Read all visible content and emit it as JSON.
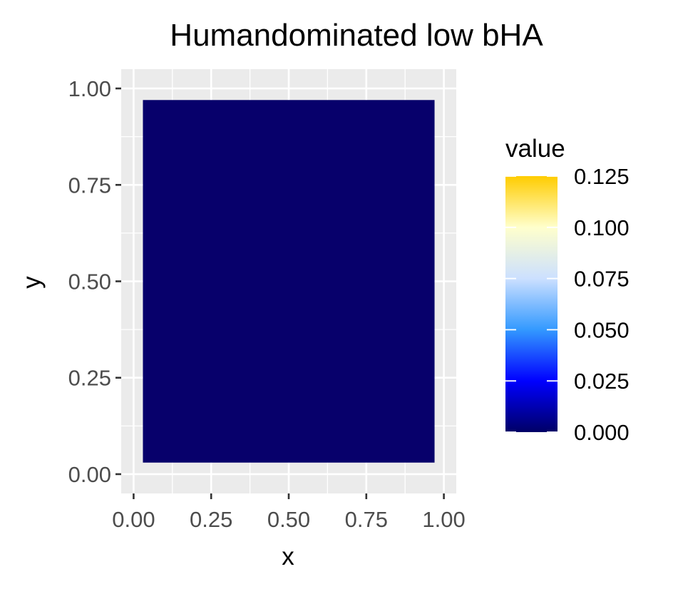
{
  "chart_data": {
    "type": "heatmap",
    "title": "Humandominated low bHA",
    "xlabel": "x",
    "ylabel": "y",
    "xlim": [
      -0.04,
      1.04
    ],
    "ylim": [
      -0.05,
      1.05
    ],
    "x_ticks": [
      0.0,
      0.25,
      0.5,
      0.75,
      1.0
    ],
    "y_ticks": [
      0.0,
      0.25,
      0.5,
      0.75,
      1.0
    ],
    "x_tick_labels": [
      "0.00",
      "0.25",
      "0.50",
      "0.75",
      "1.00"
    ],
    "y_tick_labels": [
      "0.00",
      "0.25",
      "0.50",
      "0.75",
      "1.00"
    ],
    "grid": true,
    "tile_extent": {
      "x": [
        0.03,
        0.97
      ],
      "y": [
        0.03,
        0.97
      ]
    },
    "value_estimate": 0.0,
    "fill_color": "#07006b",
    "legend": {
      "title": "value",
      "placement": "right",
      "range": [
        0.0,
        0.125
      ],
      "breaks": [
        0.0,
        0.025,
        0.05,
        0.075,
        0.1,
        0.125
      ],
      "labels": [
        "0.000",
        "0.025",
        "0.050",
        "0.075",
        "0.100",
        "0.125"
      ],
      "colors": [
        "#000066",
        "#0000ff",
        "#3399ff",
        "#cce0ff",
        "#ffffcc",
        "#ffcc00"
      ]
    },
    "panel_background": "#ebebeb",
    "grid_color": "#ffffff"
  }
}
